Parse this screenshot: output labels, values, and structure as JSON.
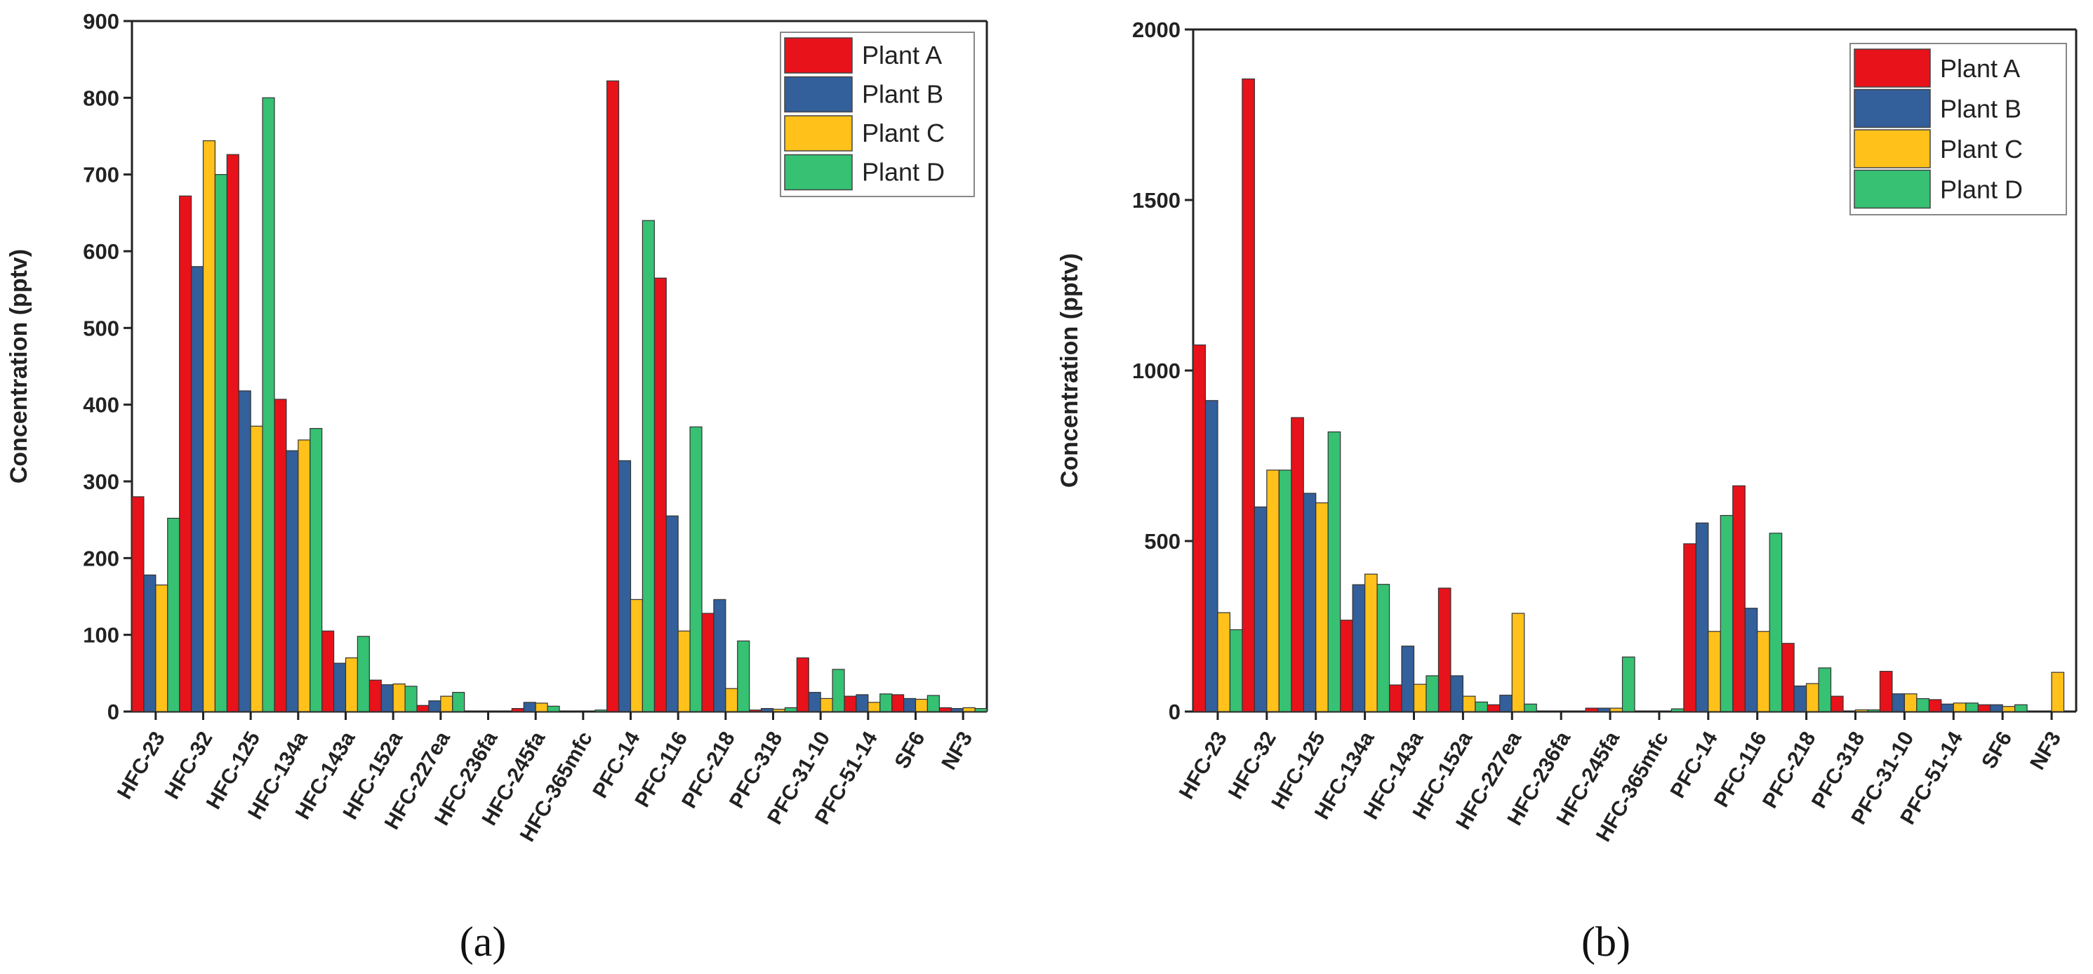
{
  "colors": {
    "Plant A": "#e8121a",
    "Plant B": "#335f9a",
    "Plant C": "#ffc11a",
    "Plant D": "#36c173"
  },
  "chart_data": [
    {
      "type": "bar",
      "panel_label": "(a)",
      "ylabel": "Concentration (pptv)",
      "xlabel": "",
      "ylim": [
        0,
        900
      ],
      "yticks": [
        0,
        100,
        200,
        300,
        400,
        500,
        600,
        700,
        800,
        900
      ],
      "legend_position": "top-right",
      "categories": [
        "HFC-23",
        "HFC-32",
        "HFC-125",
        "HFC-134a",
        "HFC-143a",
        "HFC-152a",
        "HFC-227ea",
        "HFC-236fa",
        "HFC-245fa",
        "HFC-365mfc",
        "PFC-14",
        "PFC-116",
        "PFC-218",
        "PFC-318",
        "PFC-31-10",
        "PFC-51-14",
        "SF6",
        "NF3"
      ],
      "series": [
        {
          "name": "Plant A",
          "values": [
            280,
            672,
            726,
            407,
            105,
            41,
            8,
            0,
            4,
            0,
            822,
            565,
            128,
            2,
            70,
            20,
            22,
            5
          ]
        },
        {
          "name": "Plant B",
          "values": [
            178,
            580,
            418,
            340,
            63,
            35,
            14,
            0,
            12,
            0,
            327,
            255,
            146,
            4,
            25,
            22,
            17,
            4
          ]
        },
        {
          "name": "Plant C",
          "values": [
            165,
            744,
            372,
            354,
            70,
            36,
            20,
            0,
            11,
            0,
            146,
            105,
            30,
            3,
            17,
            12,
            16,
            5
          ]
        },
        {
          "name": "Plant D",
          "values": [
            252,
            700,
            800,
            369,
            98,
            33,
            25,
            0,
            7,
            2,
            640,
            371,
            92,
            5,
            55,
            23,
            21,
            4
          ]
        }
      ]
    },
    {
      "type": "bar",
      "panel_label": "(b)",
      "ylabel": "Concentration (pptv)",
      "xlabel": "",
      "ylim": [
        0,
        2000
      ],
      "yticks": [
        0,
        500,
        1000,
        1500,
        2000
      ],
      "legend_position": "top-right",
      "categories": [
        "HFC-23",
        "HFC-32",
        "HFC-125",
        "HFC-134a",
        "HFC-143a",
        "HFC-152a",
        "HFC-227ea",
        "HFC-236fa",
        "HFC-245fa",
        "HFC-365mfc",
        "PFC-14",
        "PFC-116",
        "PFC-218",
        "PFC-318",
        "PFC-31-10",
        "PFC-51-14",
        "SF6",
        "NF3"
      ],
      "series": [
        {
          "name": "Plant A",
          "values": [
            1075,
            1855,
            862,
            268,
            78,
            362,
            20,
            0,
            10,
            0,
            492,
            662,
            200,
            45,
            118,
            35,
            20,
            0
          ]
        },
        {
          "name": "Plant B",
          "values": [
            912,
            600,
            640,
            372,
            192,
            105,
            48,
            0,
            10,
            0,
            553,
            303,
            75,
            0,
            52,
            22,
            20,
            0
          ]
        },
        {
          "name": "Plant C",
          "values": [
            290,
            708,
            612,
            403,
            80,
            45,
            288,
            0,
            10,
            0,
            235,
            235,
            82,
            5,
            52,
            25,
            15,
            115
          ]
        },
        {
          "name": "Plant D",
          "values": [
            240,
            708,
            820,
            373,
            105,
            28,
            22,
            0,
            160,
            8,
            575,
            523,
            128,
            5,
            38,
            25,
            20,
            0
          ]
        }
      ]
    }
  ]
}
